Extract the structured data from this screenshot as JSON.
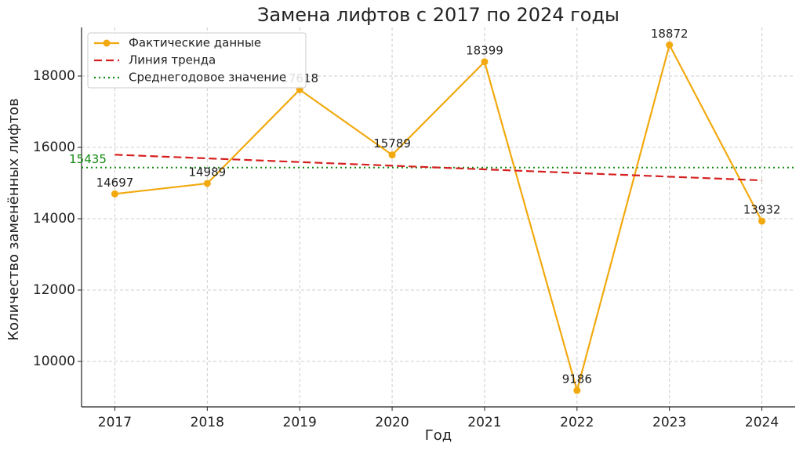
{
  "chart_data": {
    "type": "line",
    "title": "Замена лифтов с 2017 по 2024 годы",
    "x_label": "Год",
    "y_label": "Количество заменённых лифтов",
    "x": [
      2017,
      2018,
      2019,
      2020,
      2021,
      2022,
      2023,
      2024
    ],
    "xlim": [
      2016.64,
      2024.36
    ],
    "xticks": [
      2017,
      2018,
      2019,
      2020,
      2021,
      2022,
      2023,
      2024
    ],
    "ylim": [
      8725,
      19363
    ],
    "yticks": [
      10000,
      12000,
      14000,
      16000,
      18000
    ],
    "grid": true,
    "legend": "upper left",
    "series": [
      {
        "name": "Фактические данные",
        "color": "#f2a90f",
        "line_style": "solid",
        "markers": true,
        "data_labels": true,
        "values": [
          14697,
          14989,
          17618,
          15789,
          18399,
          9186,
          18872,
          13932
        ]
      },
      {
        "name": "Линия тренда",
        "color": "#d62020",
        "line_style": "dashed",
        "markers": false,
        "data_labels": false,
        "values": [
          15795,
          15692,
          15589,
          15487,
          15384,
          15281,
          15179,
          15076
        ]
      }
    ],
    "average": {
      "name": "Среднегодовое значение",
      "value": 15435,
      "color": "#138a13",
      "line_style": "dotted"
    }
  }
}
